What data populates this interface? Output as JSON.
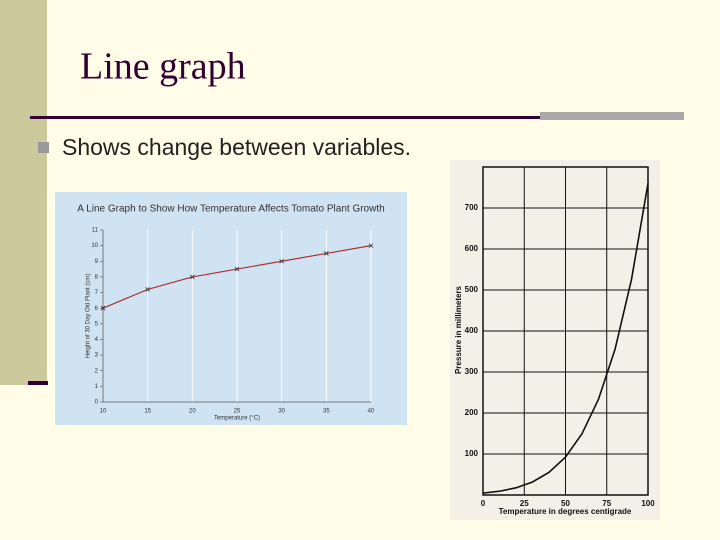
{
  "slide": {
    "title": "Line graph",
    "bullet": "Shows change between variables."
  },
  "chart_data": [
    {
      "type": "line",
      "title": "A Line Graph to Show How Temperature Affects Tomato Plant Growth",
      "x_label": "Temperature (°C)",
      "y_label": "Height of 30 Day Old Plant (cm)",
      "x": [
        10,
        15,
        20,
        25,
        30,
        35,
        40
      ],
      "values": [
        6,
        7.2,
        8,
        8.5,
        9,
        9.5,
        10
      ],
      "color": "#b03030",
      "markers": true,
      "xlim": [
        10,
        40
      ],
      "ylim": [
        0,
        11
      ],
      "xticks": [
        10,
        15,
        20,
        25,
        30,
        35,
        40
      ],
      "yticks": [
        0,
        1,
        2,
        3,
        4,
        5,
        6,
        7,
        8,
        9,
        10,
        11
      ],
      "grid": "x"
    },
    {
      "type": "line",
      "x_label": "Temperature in degrees centigrade",
      "y_label": "Pressure in millimeters",
      "x": [
        0,
        10,
        20,
        30,
        40,
        50,
        60,
        70,
        80,
        90,
        100
      ],
      "values": [
        4.6,
        9.2,
        17.5,
        31.8,
        55.3,
        92.5,
        149.4,
        233.7,
        355.1,
        525.8,
        760
      ],
      "color": "#111111",
      "markers": false,
      "xlim": [
        0,
        100
      ],
      "ylim": [
        0,
        800
      ],
      "xticks": [
        0,
        25,
        50,
        75,
        100
      ],
      "yticks": [
        100,
        200,
        300,
        400,
        500,
        600,
        700
      ],
      "grid": "both"
    }
  ]
}
